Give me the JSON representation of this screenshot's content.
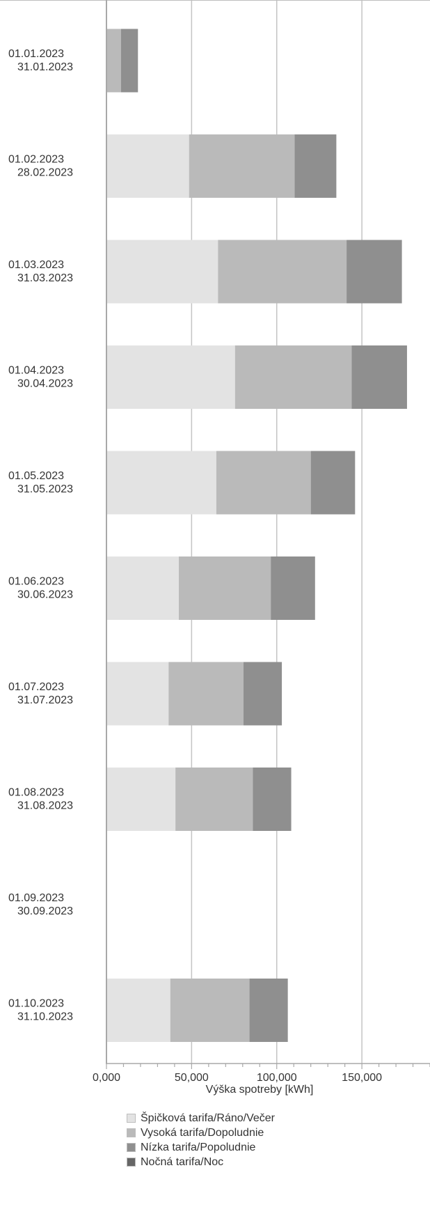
{
  "chart_data": {
    "type": "bar",
    "orientation": "horizontal",
    "stacked": true,
    "categories": [
      [
        "01.01.2023",
        "31.01.2023"
      ],
      [
        "01.02.2023",
        "28.02.2023"
      ],
      [
        "01.03.2023",
        "31.03.2023"
      ],
      [
        "01.04.2023",
        "30.04.2023"
      ],
      [
        "01.05.2023",
        "31.05.2023"
      ],
      [
        "01.06.2023",
        "30.06.2023"
      ],
      [
        "01.07.2023",
        "31.07.2023"
      ],
      [
        "01.08.2023",
        "31.08.2023"
      ],
      [
        "01.09.2023",
        "30.09.2023"
      ],
      [
        "01.10.2023",
        "31.10.2023"
      ]
    ],
    "series": [
      {
        "name": "Špičková tarifa/Ráno/Večer",
        "color": "#e3e3e3",
        "values": [
          0,
          48500,
          65500,
          75500,
          64500,
          42500,
          36500,
          40500,
          0,
          37500
        ]
      },
      {
        "name": "Vysoká tarifa/Dopoludnie",
        "color": "#bababa",
        "values": [
          8500,
          62000,
          75500,
          68500,
          55500,
          54000,
          44000,
          45500,
          0,
          46500
        ]
      },
      {
        "name": "Nízka tarifa/Popoludnie",
        "color": "#8f8f8f",
        "values": [
          10000,
          24500,
          32500,
          32500,
          26000,
          26000,
          22500,
          22500,
          0,
          22500
        ]
      },
      {
        "name": "Nočná tarifa/Noc",
        "color": "#666666",
        "values": [
          0,
          0,
          0,
          0,
          0,
          0,
          0,
          0,
          0,
          0
        ]
      }
    ],
    "xlabel": "Výška spotreby [kWh]",
    "xlim": [
      0,
      190000
    ],
    "xticks": [
      0,
      50000,
      100000,
      150000
    ],
    "xtick_labels": [
      "0,000",
      "50,000",
      "100,000",
      "150,000"
    ],
    "grid": true,
    "legend_position": "bottom"
  }
}
